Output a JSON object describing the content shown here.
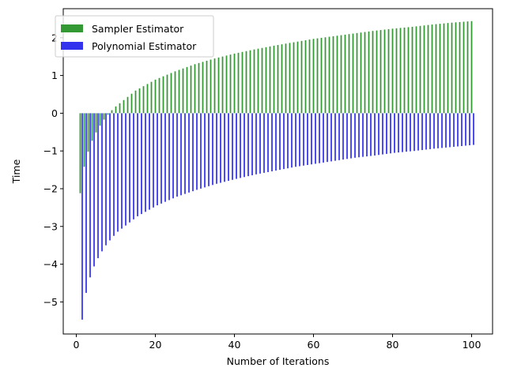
{
  "chart_data": {
    "type": "bar",
    "title": "",
    "xlabel": "Number of Iterations",
    "ylabel": "Time",
    "xlim": [
      -3.3,
      105.3
    ],
    "ylim": [
      -5.85,
      2.77
    ],
    "xticks": [
      0,
      20,
      40,
      60,
      80,
      100
    ],
    "yticks": [
      -5,
      -4,
      -3,
      -2,
      -1,
      0,
      1,
      2
    ],
    "legend_placement": "top-left",
    "bar_offset": 0.5,
    "bar_width": 0.35,
    "x_start": 1,
    "x_end": 100,
    "series": [
      {
        "name": "Sampler Estimator",
        "color": "#339933",
        "sampled_values": {
          "1": -2.12,
          "2": -1.42,
          "3": -1.02,
          "4": -0.73,
          "5": -0.51,
          "6": -0.33,
          "7": -0.17,
          "8": -0.04,
          "9": 0.08,
          "10": 0.18,
          "15": 0.6,
          "20": 0.89,
          "25": 1.11,
          "30": 1.3,
          "35": 1.45,
          "40": 1.58,
          "45": 1.69,
          "50": 1.79,
          "55": 1.88,
          "60": 1.97,
          "65": 2.04,
          "70": 2.11,
          "75": 2.18,
          "80": 2.24,
          "85": 2.29,
          "90": 2.35,
          "95": 2.4,
          "100": 2.44
        }
      },
      {
        "name": "Polynomial Estimator",
        "color": "#3333ee",
        "sampled_values": {
          "1": -5.47,
          "2": -4.76,
          "3": -4.35,
          "4": -4.06,
          "5": -3.84,
          "6": -3.66,
          "7": -3.5,
          "8": -3.37,
          "9": -3.25,
          "10": -3.14,
          "15": -2.73,
          "20": -2.44,
          "25": -2.21,
          "30": -2.03,
          "35": -1.87,
          "40": -1.74,
          "45": -1.62,
          "50": -1.52,
          "55": -1.42,
          "60": -1.34,
          "65": -1.26,
          "70": -1.18,
          "75": -1.12,
          "80": -1.05,
          "85": -1.0,
          "90": -0.94,
          "95": -0.89,
          "100": -0.84
        }
      }
    ]
  }
}
